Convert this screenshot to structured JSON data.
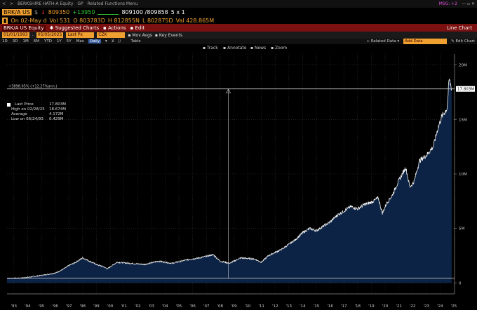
{
  "top_bar": {
    "title": "BERKSHIRE HATH-A Equity",
    "gp": "GP",
    "menu": "Related Functions Menu",
    "msg": "MSG: +2"
  },
  "quote": {
    "ticker": "BRK/A US",
    "currency": "$",
    "price": "809350",
    "change": "+13950",
    "bid_ask": "809100 /809858",
    "size": "5 x 1",
    "on_date": "On 02-May d",
    "vol": "Vol 531",
    "open": "O 803783D",
    "high": "H 812855N",
    "low": "L 802875D",
    "val": "Val 428.865M"
  },
  "toolbar": {
    "security": "BRK/A US Equity",
    "suggested": "Suggested Charts",
    "actions": "Actions",
    "edit": "Edit",
    "chart_type": "Line Chart"
  },
  "controls": {
    "start_date": "01/01/1993",
    "end_date": "05/05/2025",
    "field": "Last Px",
    "currency": "CZK",
    "mov_avgs": "Mov Avgs",
    "key_events": "Key Events",
    "related_data": "Related Data",
    "add_data": "Add Data",
    "edit_chart": "Edit Chart"
  },
  "periods": [
    "1D",
    "3D",
    "1M",
    "6M",
    "YTD",
    "1Y",
    "5Y",
    "Max"
  ],
  "selected_period": "Daily",
  "table_label": "Table",
  "chart_tools": [
    "Track",
    "Annotate",
    "News",
    "Zoom"
  ],
  "legend": {
    "last_price_label": "Last Price",
    "last_price_value": "17.803M",
    "high_label": "High on 02/28/25",
    "high_value": "18.674M",
    "average_label": "Average",
    "average_value": "4.172M",
    "low_label": "Low on 06/24/93",
    "low_value": "0.429M"
  },
  "annotation": "+3898.05% (+12.27%ann.)",
  "chart_data": {
    "type": "area",
    "title": "",
    "xlabel": "",
    "ylabel": "",
    "ylim": [
      -1,
      21
    ],
    "y_ticks": [
      "0",
      "5M",
      "10M",
      "15M",
      "20M"
    ],
    "y_tick_values": [
      0,
      5,
      10,
      15,
      20
    ],
    "x_ticks": [
      "'93",
      "'94",
      "'95",
      "'96",
      "'97",
      "'98",
      "'99",
      "'00",
      "'01",
      "'02",
      "'03",
      "'04",
      "'05",
      "'06",
      "'07",
      "'08",
      "'09",
      "'10",
      "'11",
      "'12",
      "'13",
      "'14",
      "'15",
      "'16",
      "'17",
      "'18",
      "'19",
      "'20",
      "'21",
      "'22",
      "'23",
      "'24",
      "'25"
    ],
    "last_value_label": "17.803M",
    "series": [
      {
        "name": "Last Price",
        "x": [
          1993.0,
          1994.0,
          1995.0,
          1996.0,
          1996.5,
          1997.0,
          1997.5,
          1998.0,
          1998.5,
          1999.0,
          1999.5,
          2000.0,
          2000.3,
          2001.0,
          2002.0,
          2003.0,
          2004.0,
          2005.0,
          2006.0,
          2007.0,
          2008.0,
          2008.5,
          2009.2,
          2009.5,
          2010.0,
          2011.0,
          2011.5,
          2012.0,
          2013.0,
          2014.0,
          2014.5,
          2015.0,
          2015.5,
          2016.0,
          2016.5,
          2017.0,
          2017.5,
          2018.0,
          2018.5,
          2019.0,
          2019.5,
          2020.0,
          2020.3,
          2020.6,
          2021.0,
          2021.5,
          2022.0,
          2022.3,
          2022.6,
          2023.0,
          2023.5,
          2024.0,
          2024.3,
          2024.6,
          2025.0,
          2025.16,
          2025.34
        ],
        "values": [
          0.43,
          0.45,
          0.6,
          0.8,
          0.9,
          1.2,
          1.6,
          1.9,
          2.3,
          2.0,
          1.7,
          1.5,
          1.3,
          1.9,
          1.8,
          1.7,
          2.0,
          1.8,
          2.1,
          2.3,
          2.6,
          2.0,
          1.8,
          2.0,
          2.3,
          2.2,
          1.9,
          2.5,
          3.1,
          4.0,
          4.6,
          5.0,
          4.8,
          5.2,
          5.6,
          6.2,
          6.6,
          7.0,
          6.8,
          7.2,
          7.4,
          7.8,
          6.4,
          7.3,
          8.0,
          9.4,
          10.6,
          8.8,
          9.3,
          11.2,
          11.7,
          12.5,
          14.0,
          15.2,
          16.0,
          18.67,
          17.8
        ]
      }
    ]
  }
}
